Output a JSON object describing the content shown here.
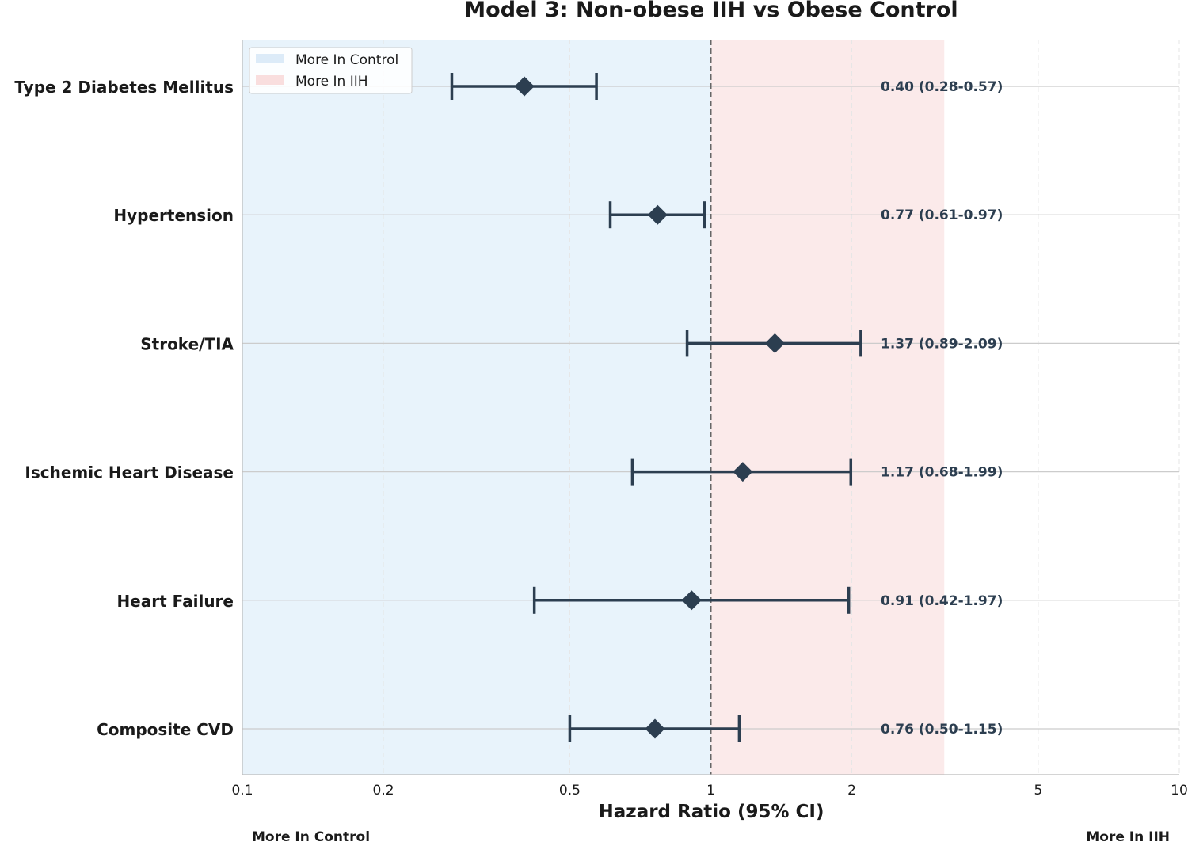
{
  "chart_data": {
    "type": "forest",
    "title": "Model 3: Non-obese IIH vs Obese Control",
    "xlabel": "Hazard Ratio (95% CI)",
    "x_scale": "log",
    "xlim": [
      0.1,
      10
    ],
    "reference_line": 1,
    "x_ticks": [
      {
        "value": 0.1,
        "label": "0.1"
      },
      {
        "value": 0.2,
        "label": "0.2"
      },
      {
        "value": 0.5,
        "label": "0.5"
      },
      {
        "value": 1,
        "label": "1"
      },
      {
        "value": 2,
        "label": "2"
      },
      {
        "value": 5,
        "label": "5"
      },
      {
        "value": 10,
        "label": "10"
      }
    ],
    "shaded_regions": [
      {
        "name": "More In Control",
        "from": 0.1,
        "to": 1,
        "color": "#e8f3fb"
      },
      {
        "name": "More In IIH",
        "from": 1,
        "to": 3.15,
        "color": "#fbeaea"
      }
    ],
    "legend": {
      "position": "top-left",
      "entries": [
        {
          "label": "More In Control",
          "color": "#dcebf8"
        },
        {
          "label": "More In IIH",
          "color": "#f9dede"
        }
      ]
    },
    "outcomes": [
      {
        "name": "Type 2 Diabetes Mellitus",
        "hr": 0.4,
        "lower": 0.28,
        "upper": 0.57,
        "text": "0.40 (0.28-0.57)"
      },
      {
        "name": "Hypertension",
        "hr": 0.77,
        "lower": 0.61,
        "upper": 0.97,
        "text": "0.77 (0.61-0.97)"
      },
      {
        "name": "Stroke/TIA",
        "hr": 1.37,
        "lower": 0.89,
        "upper": 2.09,
        "text": "1.37 (0.89-2.09)"
      },
      {
        "name": "Ischemic Heart Disease",
        "hr": 1.17,
        "lower": 0.68,
        "upper": 1.99,
        "text": "1.17 (0.68-1.99)"
      },
      {
        "name": "Heart Failure",
        "hr": 0.91,
        "lower": 0.42,
        "upper": 1.97,
        "text": "0.91 (0.42-1.97)"
      },
      {
        "name": "Composite CVD",
        "hr": 0.76,
        "lower": 0.5,
        "upper": 1.15,
        "text": "0.76 (0.50-1.15)"
      }
    ],
    "ci_text_x_value": 2.65,
    "direction_labels": {
      "left": "More In Control",
      "right": "More In IIH"
    },
    "colors": {
      "marker": "#2c3e50",
      "reference_line": "#666666",
      "row_line": "#cccccc",
      "grid": "#e6e6e6"
    }
  }
}
